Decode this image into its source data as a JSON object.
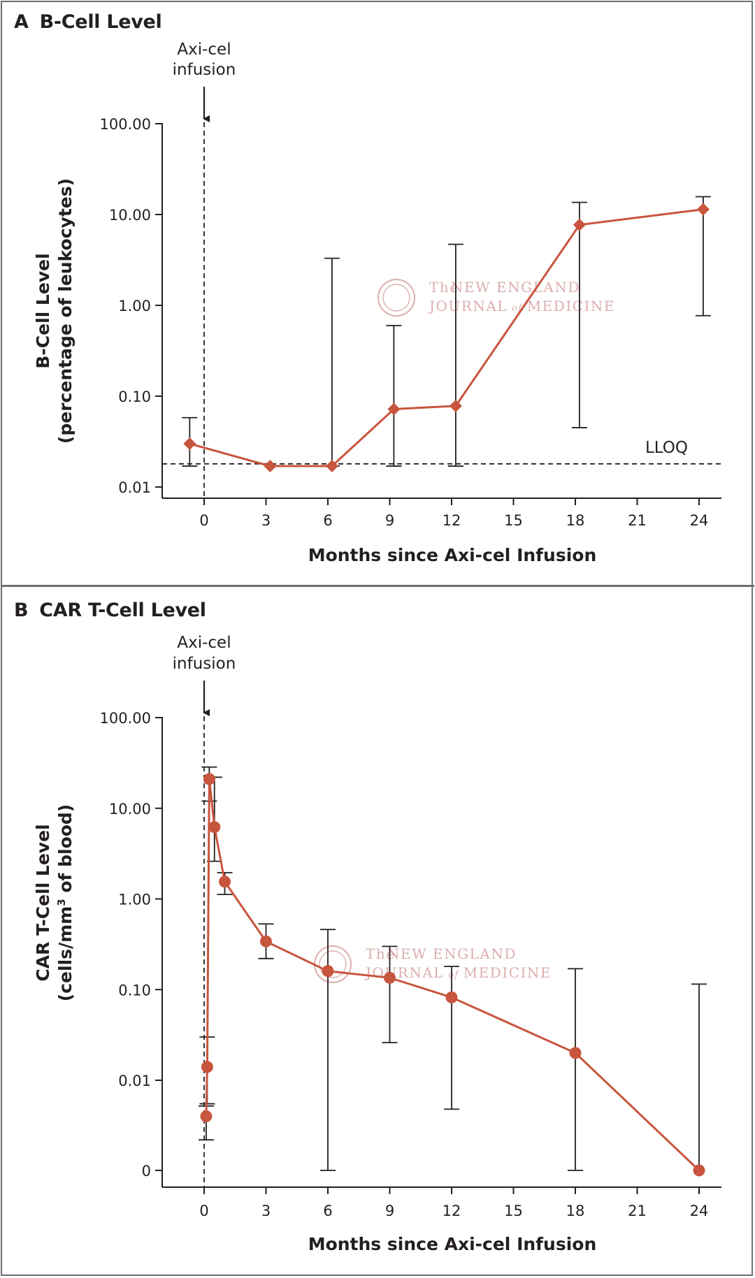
{
  "chart_data": [
    {
      "type": "line",
      "panel_letter": "A",
      "title": "B-Cell Level",
      "xlabel": "Months since Axi-cel Infusion",
      "ylabel_line1": "B-Cell Level",
      "ylabel_line2": "(percentage of leukocytes)",
      "y_scale": "log",
      "ylim": [
        0.01,
        100
      ],
      "xlim": [
        -2,
        25
      ],
      "x_ticks": [
        0,
        3,
        6,
        9,
        12,
        15,
        18,
        21,
        24
      ],
      "x_tick_labels": [
        "0",
        "3",
        "6",
        "9",
        "12",
        "15",
        "18",
        "21",
        "24"
      ],
      "y_ticks": [
        0.01,
        0.1,
        1,
        10,
        100
      ],
      "y_tick_labels": [
        "0.01",
        "0.10",
        "1.00",
        "10.00",
        "100.00"
      ],
      "marker": "diamond",
      "series": [
        {
          "name": "B-cell level",
          "x": [
            -0.7,
            3.2,
            6.2,
            9.2,
            12.2,
            18.2,
            24.2
          ],
          "y": [
            0.03,
            0.017,
            0.017,
            0.072,
            0.078,
            7.7,
            11.4
          ],
          "err_low": [
            0.017,
            null,
            0.017,
            0.017,
            0.017,
            0.045,
            0.77
          ],
          "err_high": [
            0.058,
            null,
            3.3,
            0.6,
            4.7,
            13.6,
            15.7
          ]
        }
      ],
      "annotations": [
        {
          "label": "Axi-cel infusion",
          "line1": "Axi-cel",
          "line2": "infusion",
          "x": 0
        },
        {
          "label": "LLOQ",
          "y": 0.018
        }
      ]
    },
    {
      "type": "line",
      "panel_letter": "B",
      "title": "CAR T-Cell Level",
      "xlabel": "Months since Axi-cel Infusion",
      "ylabel_line1": "CAR T-Cell Level",
      "ylabel_line2_pre": "(cells/mm",
      "ylabel_line2_sup": "3",
      "ylabel_line2_post": " of blood)",
      "y_scale": "log (with 0 at bottom)",
      "ylim": [
        0,
        100
      ],
      "xlim": [
        -2,
        25
      ],
      "x_ticks": [
        0,
        3,
        6,
        9,
        12,
        15,
        18,
        21,
        24
      ],
      "x_tick_labels": [
        "0",
        "3",
        "6",
        "9",
        "12",
        "15",
        "18",
        "21",
        "24"
      ],
      "y_ticks": [
        0,
        0.01,
        0.1,
        1,
        10,
        100
      ],
      "y_tick_labels": [
        "0",
        "0.01",
        "0.10",
        "1.00",
        "10.00",
        "100.00"
      ],
      "marker": "circle",
      "series": [
        {
          "name": "CAR T-cell level",
          "x": [
            0.1,
            0.15,
            0.25,
            0.5,
            1.0,
            3.0,
            6.0,
            9.0,
            12.0,
            18.0,
            24.0
          ],
          "y": [
            0.004,
            0.014,
            21,
            6.2,
            1.55,
            0.34,
            0.16,
            0.135,
            0.082,
            0.02,
            0
          ],
          "err_low": [
            0.0022,
            0.0055,
            12,
            2.6,
            1.12,
            0.22,
            0,
            0.026,
            0.0048,
            0,
            null
          ],
          "err_high": [
            0.0052,
            0.03,
            28.5,
            22,
            1.95,
            0.53,
            0.46,
            0.3,
            0.18,
            0.17,
            0.115
          ]
        }
      ],
      "annotations": [
        {
          "label": "Axi-cel infusion",
          "line1": "Axi-cel",
          "line2": "infusion",
          "x": 0
        }
      ]
    }
  ],
  "watermark": {
    "small": "The",
    "line1": "NEW ENGLAND",
    "line2_a": "JOURNAL",
    "line2_of": "of",
    "line2_b": "MEDICINE"
  },
  "colors": {
    "series": "#c8553d",
    "axis": "#231f20",
    "frame": "#6d6e71",
    "watermark": "#d8a6a6"
  }
}
